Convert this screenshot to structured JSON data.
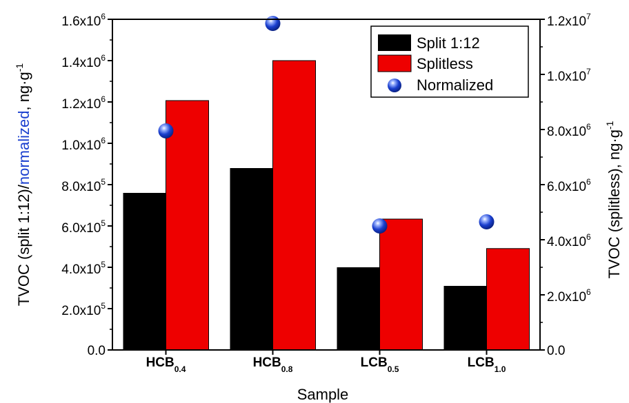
{
  "chart_data": {
    "type": "bar",
    "categories": [
      {
        "base": "HCB",
        "sub": "0.4"
      },
      {
        "base": "HCB",
        "sub": "0.8"
      },
      {
        "base": "LCB",
        "sub": "0.5"
      },
      {
        "base": "LCB",
        "sub": "1.0"
      }
    ],
    "xlabel": "Sample",
    "ylabel_left": {
      "part1": "TVOC (split 1:12)/",
      "part2": "normalized",
      "part3": ", ng·g",
      "sup": "-1"
    },
    "ylabel_right": {
      "part1": "TVOC (splitless), ng·g",
      "sup": "-1"
    },
    "y_left": {
      "lim": [
        0,
        1600000
      ],
      "ticks": [
        {
          "mant": "0.0",
          "exp": ""
        },
        {
          "mant": "2.0x10",
          "exp": "5"
        },
        {
          "mant": "4.0x10",
          "exp": "5"
        },
        {
          "mant": "6.0x10",
          "exp": "5"
        },
        {
          "mant": "8.0x10",
          "exp": "5"
        },
        {
          "mant": "1.0x10",
          "exp": "6"
        },
        {
          "mant": "1.2x10",
          "exp": "6"
        },
        {
          "mant": "1.4x10",
          "exp": "6"
        },
        {
          "mant": "1.6x10",
          "exp": "6"
        }
      ]
    },
    "y_right": {
      "lim": [
        0,
        12000000
      ],
      "ticks": [
        {
          "mant": "0.0",
          "exp": ""
        },
        {
          "mant": "2.0x10",
          "exp": "6"
        },
        {
          "mant": "4.0x10",
          "exp": "6"
        },
        {
          "mant": "6.0x10",
          "exp": "6"
        },
        {
          "mant": "8.0x10",
          "exp": "6"
        },
        {
          "mant": "1.0x10",
          "exp": "7"
        },
        {
          "mant": "1.2x10",
          "exp": "7"
        }
      ]
    },
    "series": [
      {
        "name": "Split 1:12",
        "axis": "left",
        "kind": "bar",
        "color": "#000000",
        "values": [
          760000,
          880000,
          400000,
          310000
        ]
      },
      {
        "name": "Splitless",
        "axis": "right",
        "kind": "bar",
        "color": "#ee0000",
        "values": [
          9050000,
          10500000,
          4750000,
          3680000
        ]
      },
      {
        "name": "Normalized",
        "axis": "left",
        "kind": "scatter",
        "color": "#1a3fcf",
        "values": [
          1060000,
          1580000,
          600000,
          620000
        ]
      }
    ],
    "legend": "top-right",
    "grid": false
  }
}
